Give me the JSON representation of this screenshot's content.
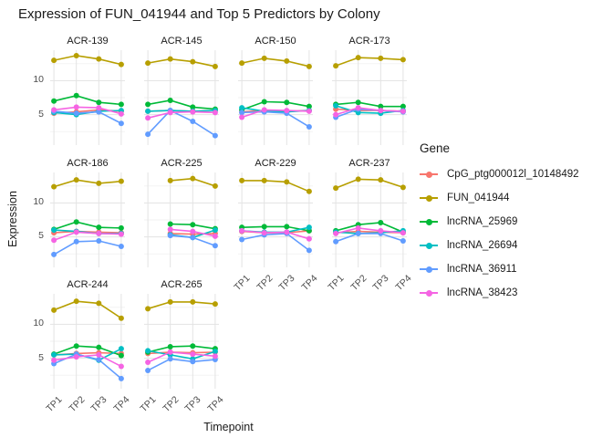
{
  "title": "Expression of FUN_041944 and Top 5 Predictors by Colony",
  "x_axis": {
    "title": "Timepoint",
    "ticks": [
      "TP1",
      "TP2",
      "TP3",
      "TP4"
    ]
  },
  "y_axis": {
    "title": "Expression",
    "ticks": [
      10,
      5
    ]
  },
  "legend": {
    "title": "Gene",
    "entries": [
      {
        "label": "CpG_ptg000012l_10148492",
        "color": "#F8766D"
      },
      {
        "label": "FUN_041944",
        "color": "#B79F00"
      },
      {
        "label": "lncRNA_25969",
        "color": "#00BA38"
      },
      {
        "label": "lncRNA_26694",
        "color": "#00BFC4"
      },
      {
        "label": "lncRNA_36911",
        "color": "#619CFF"
      },
      {
        "label": "lncRNA_38423",
        "color": "#F564E3"
      }
    ]
  },
  "chart_data": {
    "type": "line",
    "x": [
      "TP1",
      "TP2",
      "TP3",
      "TP4"
    ],
    "ylim": [
      0.5,
      14.5
    ],
    "grid": {
      "major_y": [
        5,
        10
      ],
      "minor_y": [
        2.5,
        7.5,
        12.5
      ],
      "vertical_at_ticks": true
    },
    "legend_position": "right",
    "facets": [
      {
        "name": "ACR-139",
        "series": [
          {
            "gene": "CpG_ptg000012l_10148492",
            "values": [
              5.2,
              5.4,
              5.7,
              5.5
            ]
          },
          {
            "gene": "FUN_041944",
            "values": [
              13.0,
              13.7,
              13.2,
              12.4
            ]
          },
          {
            "gene": "lncRNA_25969",
            "values": [
              7.0,
              7.8,
              6.8,
              6.5
            ]
          },
          {
            "gene": "lncRNA_26694",
            "values": [
              5.3,
              5.0,
              5.5,
              5.6
            ]
          },
          {
            "gene": "lncRNA_36911",
            "values": [
              5.5,
              5.2,
              5.4,
              3.7
            ]
          },
          {
            "gene": "lncRNA_38423",
            "values": [
              5.7,
              6.1,
              6.0,
              5.1
            ]
          }
        ]
      },
      {
        "name": "ACR-145",
        "series": [
          {
            "gene": "CpG_ptg000012l_10148492",
            "values": [
              5.5,
              5.6,
              5.5,
              5.6
            ]
          },
          {
            "gene": "FUN_041944",
            "values": [
              12.6,
              13.2,
              12.8,
              12.1
            ]
          },
          {
            "gene": "lncRNA_25969",
            "values": [
              6.5,
              7.1,
              6.1,
              5.8
            ]
          },
          {
            "gene": "lncRNA_26694",
            "values": [
              5.5,
              5.6,
              5.5,
              5.6
            ]
          },
          {
            "gene": "lncRNA_36911",
            "values": [
              2.1,
              5.6,
              4.0,
              1.9
            ]
          },
          {
            "gene": "lncRNA_38423",
            "values": [
              4.5,
              5.3,
              5.4,
              5.3
            ]
          }
        ]
      },
      {
        "name": "ACR-150",
        "series": [
          {
            "gene": "CpG_ptg000012l_10148492",
            "values": [
              5.4,
              5.6,
              5.5,
              5.6
            ]
          },
          {
            "gene": "FUN_041944",
            "values": [
              12.6,
              13.3,
              12.9,
              12.1
            ]
          },
          {
            "gene": "lncRNA_25969",
            "values": [
              5.7,
              6.9,
              6.8,
              6.2
            ]
          },
          {
            "gene": "lncRNA_26694",
            "values": [
              6.0,
              5.5,
              5.4,
              5.6
            ]
          },
          {
            "gene": "lncRNA_36911",
            "values": [
              5.3,
              5.4,
              5.2,
              3.2
            ]
          },
          {
            "gene": "lncRNA_38423",
            "values": [
              4.6,
              5.7,
              5.6,
              5.5
            ]
          }
        ]
      },
      {
        "name": "ACR-173",
        "series": [
          {
            "gene": "CpG_ptg000012l_10148492",
            "values": [
              5.8,
              5.6,
              5.6,
              5.5
            ]
          },
          {
            "gene": "FUN_041944",
            "values": [
              12.2,
              13.4,
              13.3,
              13.1
            ]
          },
          {
            "gene": "lncRNA_25969",
            "values": [
              6.5,
              6.8,
              6.2,
              6.2
            ]
          },
          {
            "gene": "lncRNA_26694",
            "values": [
              6.3,
              5.3,
              5.2,
              5.6
            ]
          },
          {
            "gene": "lncRNA_36911",
            "values": [
              4.6,
              5.8,
              5.6,
              5.4
            ]
          },
          {
            "gene": "lncRNA_38423",
            "values": [
              5.0,
              6.0,
              5.6,
              5.5
            ]
          }
        ]
      },
      {
        "name": "ACR-186",
        "series": [
          {
            "gene": "CpG_ptg000012l_10148492",
            "values": [
              5.6,
              5.8,
              5.7,
              5.6
            ]
          },
          {
            "gene": "FUN_041944",
            "values": [
              12.4,
              13.4,
              12.9,
              13.2
            ]
          },
          {
            "gene": "lncRNA_25969",
            "values": [
              6.1,
              7.2,
              6.4,
              6.3
            ]
          },
          {
            "gene": "lncRNA_26694",
            "values": [
              6.0,
              5.8,
              5.5,
              5.5
            ]
          },
          {
            "gene": "lncRNA_36911",
            "values": [
              2.4,
              4.3,
              4.4,
              3.6
            ]
          },
          {
            "gene": "lncRNA_38423",
            "values": [
              4.5,
              5.7,
              5.5,
              5.4
            ]
          }
        ]
      },
      {
        "name": "ACR-225",
        "series": [
          {
            "gene": "CpG_ptg000012l_10148492",
            "values": [
              null,
              5.5,
              5.4,
              5.5
            ]
          },
          {
            "gene": "FUN_041944",
            "values": [
              null,
              13.3,
              13.6,
              12.5
            ]
          },
          {
            "gene": "lncRNA_25969",
            "values": [
              null,
              6.9,
              6.8,
              6.2
            ]
          },
          {
            "gene": "lncRNA_26694",
            "values": [
              null,
              5.3,
              4.9,
              6.0
            ]
          },
          {
            "gene": "lncRNA_36911",
            "values": [
              null,
              5.2,
              4.9,
              3.7
            ]
          },
          {
            "gene": "lncRNA_38423",
            "values": [
              null,
              6.1,
              5.8,
              5.1
            ]
          }
        ]
      },
      {
        "name": "ACR-229",
        "series": [
          {
            "gene": "CpG_ptg000012l_10148492",
            "values": [
              5.8,
              5.6,
              5.6,
              5.9
            ]
          },
          {
            "gene": "FUN_041944",
            "values": [
              13.3,
              13.3,
              13.1,
              11.7
            ]
          },
          {
            "gene": "lncRNA_25969",
            "values": [
              6.4,
              6.5,
              6.5,
              5.9
            ]
          },
          {
            "gene": "lncRNA_26694",
            "values": [
              5.9,
              5.7,
              5.7,
              6.4
            ]
          },
          {
            "gene": "lncRNA_36911",
            "values": [
              4.6,
              5.3,
              5.5,
              3.0
            ]
          },
          {
            "gene": "lncRNA_38423",
            "values": [
              5.9,
              5.6,
              5.7,
              4.7
            ]
          }
        ]
      },
      {
        "name": "ACR-237",
        "series": [
          {
            "gene": "CpG_ptg000012l_10148492",
            "values": [
              5.6,
              5.8,
              5.7,
              5.6
            ]
          },
          {
            "gene": "FUN_041944",
            "values": [
              12.2,
              13.5,
              13.4,
              12.3
            ]
          },
          {
            "gene": "lncRNA_25969",
            "values": [
              5.9,
              6.8,
              7.1,
              5.7
            ]
          },
          {
            "gene": "lncRNA_26694",
            "values": [
              5.7,
              5.5,
              5.6,
              5.9
            ]
          },
          {
            "gene": "lncRNA_36911",
            "values": [
              4.3,
              5.5,
              5.5,
              4.4
            ]
          },
          {
            "gene": "lncRNA_38423",
            "values": [
              5.5,
              6.3,
              5.9,
              5.6
            ]
          }
        ]
      },
      {
        "name": "ACR-244",
        "series": [
          {
            "gene": "CpG_ptg000012l_10148492",
            "values": [
              5.5,
              5.7,
              5.8,
              5.7
            ]
          },
          {
            "gene": "FUN_041944",
            "values": [
              12.1,
              13.4,
              13.1,
              10.9
            ]
          },
          {
            "gene": "lncRNA_25969",
            "values": [
              5.6,
              6.8,
              6.6,
              5.4
            ]
          },
          {
            "gene": "lncRNA_26694",
            "values": [
              5.5,
              5.6,
              4.7,
              6.4
            ]
          },
          {
            "gene": "lncRNA_36911",
            "values": [
              4.2,
              5.6,
              4.8,
              2.0
            ]
          },
          {
            "gene": "lncRNA_38423",
            "values": [
              4.7,
              5.2,
              5.5,
              3.8
            ]
          }
        ]
      },
      {
        "name": "ACR-265",
        "series": [
          {
            "gene": "CpG_ptg000012l_10148492",
            "values": [
              5.7,
              5.9,
              5.8,
              5.9
            ]
          },
          {
            "gene": "FUN_041944",
            "values": [
              12.3,
              13.3,
              13.3,
              13.0
            ]
          },
          {
            "gene": "lncRNA_25969",
            "values": [
              5.9,
              6.7,
              6.8,
              6.4
            ]
          },
          {
            "gene": "lncRNA_26694",
            "values": [
              6.1,
              5.5,
              4.9,
              6.0
            ]
          },
          {
            "gene": "lncRNA_36911",
            "values": [
              3.2,
              4.9,
              4.5,
              4.8
            ]
          },
          {
            "gene": "lncRNA_38423",
            "values": [
              4.4,
              5.9,
              5.6,
              5.3
            ]
          }
        ]
      }
    ]
  }
}
